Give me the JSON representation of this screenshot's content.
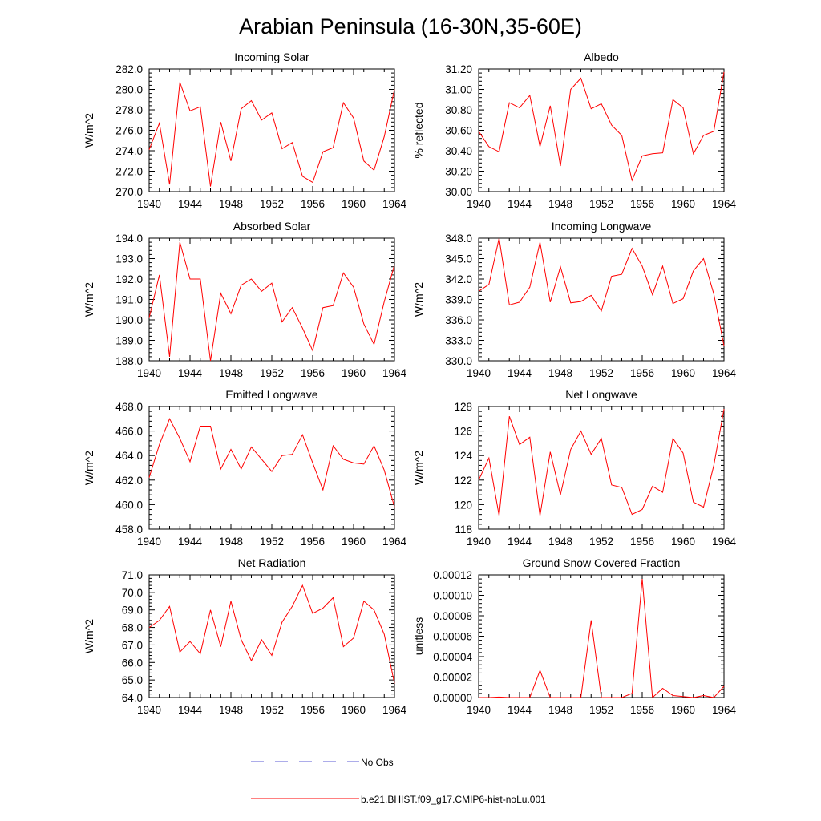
{
  "title": "Arabian Peninsula (16-30N,35-60E)",
  "colors": {
    "model": "#ff0000",
    "obs": "#5b5bd6",
    "axis": "#000000",
    "background": "#ffffff"
  },
  "legend": {
    "placement": "bottom-center",
    "items": [
      {
        "label": "No Obs",
        "style": "dashed",
        "color": "#5b5bd6"
      },
      {
        "label": "b.e21.BHIST.f09_g17.CMIP6-hist-noLu.001",
        "style": "solid",
        "color": "#ff0000"
      }
    ]
  },
  "chart_data": [
    {
      "type": "line",
      "title": "Incoming Solar",
      "ylabel": "W/m^2",
      "xlim": [
        1940,
        1964
      ],
      "ylim": [
        270,
        282
      ],
      "xticks": [
        "1940",
        "1944",
        "1948",
        "1952",
        "1956",
        "1960",
        "1964"
      ],
      "yticks": [
        "270.0",
        "272.0",
        "274.0",
        "276.0",
        "278.0",
        "280.0",
        "282.0"
      ],
      "grid": false,
      "x": [
        1940,
        1941,
        1942,
        1943,
        1944,
        1945,
        1946,
        1947,
        1948,
        1949,
        1950,
        1951,
        1952,
        1953,
        1954,
        1955,
        1956,
        1957,
        1958,
        1959,
        1960,
        1961,
        1962,
        1963,
        1964
      ],
      "series": [
        {
          "name": "b.e21.BHIST.f09_g17.CMIP6-hist-noLu.001",
          "values": [
            274.1,
            276.7,
            270.7,
            280.7,
            277.9,
            278.3,
            270.5,
            276.8,
            273.0,
            278.1,
            278.9,
            277.0,
            277.7,
            274.2,
            274.8,
            271.5,
            270.9,
            273.9,
            274.3,
            278.7,
            277.2,
            273.0,
            272.1,
            275.4,
            280.0
          ]
        }
      ]
    },
    {
      "type": "line",
      "title": "Albedo",
      "ylabel": "% reflected",
      "xlim": [
        1940,
        1964
      ],
      "ylim": [
        30.0,
        31.2
      ],
      "xticks": [
        "1940",
        "1944",
        "1948",
        "1952",
        "1956",
        "1960",
        "1964"
      ],
      "yticks": [
        "30.00",
        "30.20",
        "30.40",
        "30.60",
        "30.80",
        "31.00",
        "31.20"
      ],
      "grid": false,
      "x": [
        1940,
        1941,
        1942,
        1943,
        1944,
        1945,
        1946,
        1947,
        1948,
        1949,
        1950,
        1951,
        1952,
        1953,
        1954,
        1955,
        1956,
        1957,
        1958,
        1959,
        1960,
        1961,
        1962,
        1963,
        1964
      ],
      "series": [
        {
          "name": "b.e21.BHIST.f09_g17.CMIP6-hist-noLu.001",
          "values": [
            30.59,
            30.44,
            30.39,
            30.87,
            30.82,
            30.94,
            30.44,
            30.84,
            30.25,
            31.0,
            31.11,
            30.81,
            30.86,
            30.65,
            30.55,
            30.11,
            30.35,
            30.37,
            30.38,
            30.9,
            30.82,
            30.37,
            30.55,
            30.59,
            31.17
          ]
        }
      ]
    },
    {
      "type": "line",
      "title": "Absorbed Solar",
      "ylabel": "W/m^2",
      "xlim": [
        1940,
        1964
      ],
      "ylim": [
        188,
        194
      ],
      "xticks": [
        "1940",
        "1944",
        "1948",
        "1952",
        "1956",
        "1960",
        "1964"
      ],
      "yticks": [
        "188.0",
        "189.0",
        "190.0",
        "191.0",
        "192.0",
        "193.0",
        "194.0"
      ],
      "grid": false,
      "x": [
        1940,
        1941,
        1942,
        1943,
        1944,
        1945,
        1946,
        1947,
        1948,
        1949,
        1950,
        1951,
        1952,
        1953,
        1954,
        1955,
        1956,
        1957,
        1958,
        1959,
        1960,
        1961,
        1962,
        1963,
        1964
      ],
      "series": [
        {
          "name": "b.e21.BHIST.f09_g17.CMIP6-hist-noLu.001",
          "values": [
            190.1,
            192.2,
            188.2,
            193.8,
            192.0,
            192.0,
            188.0,
            191.3,
            190.3,
            191.7,
            192.0,
            191.4,
            191.8,
            189.9,
            190.6,
            189.6,
            188.5,
            190.6,
            190.7,
            192.3,
            191.6,
            189.8,
            188.8,
            190.9,
            192.7
          ]
        }
      ]
    },
    {
      "type": "line",
      "title": "Incoming Longwave",
      "ylabel": "W/m^2",
      "xlim": [
        1940,
        1964
      ],
      "ylim": [
        330,
        348
      ],
      "xticks": [
        "1940",
        "1944",
        "1948",
        "1952",
        "1956",
        "1960",
        "1964"
      ],
      "yticks": [
        "330.0",
        "333.0",
        "336.0",
        "339.0",
        "342.0",
        "345.0",
        "348.0"
      ],
      "grid": false,
      "x": [
        1940,
        1941,
        1942,
        1943,
        1944,
        1945,
        1946,
        1947,
        1948,
        1949,
        1950,
        1951,
        1952,
        1953,
        1954,
        1955,
        1956,
        1957,
        1958,
        1959,
        1960,
        1961,
        1962,
        1963,
        1964
      ],
      "series": [
        {
          "name": "b.e21.BHIST.f09_g17.CMIP6-hist-noLu.001",
          "values": [
            340.2,
            341.2,
            348.0,
            338.2,
            338.6,
            340.8,
            347.4,
            338.6,
            343.8,
            338.5,
            338.7,
            339.6,
            337.3,
            342.4,
            342.7,
            346.5,
            343.9,
            339.7,
            343.9,
            338.4,
            339.1,
            343.2,
            345.0,
            339.8,
            332.2
          ]
        }
      ]
    },
    {
      "type": "line",
      "title": "Emitted Longwave",
      "ylabel": "W/m^2",
      "xlim": [
        1940,
        1964
      ],
      "ylim": [
        458,
        468
      ],
      "xticks": [
        "1940",
        "1944",
        "1948",
        "1952",
        "1956",
        "1960",
        "1964"
      ],
      "yticks": [
        "458.0",
        "460.0",
        "462.0",
        "464.0",
        "466.0",
        "468.0"
      ],
      "grid": false,
      "x": [
        1940,
        1941,
        1942,
        1943,
        1944,
        1945,
        1946,
        1947,
        1948,
        1949,
        1950,
        1951,
        1952,
        1953,
        1954,
        1955,
        1956,
        1957,
        1958,
        1959,
        1960,
        1961,
        1962,
        1963,
        1964
      ],
      "series": [
        {
          "name": "b.e21.BHIST.f09_g17.CMIP6-hist-noLu.001",
          "values": [
            462.2,
            464.9,
            467.0,
            465.4,
            463.5,
            466.4,
            466.4,
            462.9,
            464.5,
            462.9,
            464.7,
            463.7,
            462.7,
            464.0,
            464.1,
            465.7,
            463.4,
            461.2,
            464.8,
            463.7,
            463.4,
            463.3,
            464.8,
            462.8,
            459.8
          ]
        }
      ]
    },
    {
      "type": "line",
      "title": "Net Longwave",
      "ylabel": "W/m^2",
      "xlim": [
        1940,
        1964
      ],
      "ylim": [
        118,
        128
      ],
      "xticks": [
        "1940",
        "1944",
        "1948",
        "1952",
        "1956",
        "1960",
        "1964"
      ],
      "yticks": [
        "118",
        "120",
        "122",
        "124",
        "126",
        "128"
      ],
      "grid": false,
      "x": [
        1940,
        1941,
        1942,
        1943,
        1944,
        1945,
        1946,
        1947,
        1948,
        1949,
        1950,
        1951,
        1952,
        1953,
        1954,
        1955,
        1956,
        1957,
        1958,
        1959,
        1960,
        1961,
        1962,
        1963,
        1964
      ],
      "series": [
        {
          "name": "b.e21.BHIST.f09_g17.CMIP6-hist-noLu.001",
          "values": [
            122.0,
            123.8,
            119.1,
            127.2,
            124.9,
            125.5,
            119.1,
            124.3,
            120.8,
            124.5,
            126.0,
            124.1,
            125.4,
            121.6,
            121.4,
            119.2,
            119.6,
            121.5,
            121.0,
            125.4,
            124.2,
            120.2,
            119.8,
            123.2,
            127.8
          ]
        }
      ]
    },
    {
      "type": "line",
      "title": "Net Radiation",
      "ylabel": "W/m^2",
      "xlim": [
        1940,
        1964
      ],
      "ylim": [
        64,
        71
      ],
      "xticks": [
        "1940",
        "1944",
        "1948",
        "1952",
        "1956",
        "1960",
        "1964"
      ],
      "yticks": [
        "64.0",
        "65.0",
        "66.0",
        "67.0",
        "68.0",
        "69.0",
        "70.0",
        "71.0"
      ],
      "grid": false,
      "x": [
        1940,
        1941,
        1942,
        1943,
        1944,
        1945,
        1946,
        1947,
        1948,
        1949,
        1950,
        1951,
        1952,
        1953,
        1954,
        1955,
        1956,
        1957,
        1958,
        1959,
        1960,
        1961,
        1962,
        1963,
        1964
      ],
      "series": [
        {
          "name": "b.e21.BHIST.f09_g17.CMIP6-hist-noLu.001",
          "values": [
            68.0,
            68.4,
            69.2,
            66.6,
            67.2,
            66.5,
            69.0,
            66.9,
            69.5,
            67.3,
            66.1,
            67.3,
            66.4,
            68.3,
            69.2,
            70.4,
            68.8,
            69.1,
            69.7,
            66.9,
            67.4,
            69.5,
            69.0,
            67.6,
            64.8
          ]
        }
      ]
    },
    {
      "type": "line",
      "title": "Ground Snow Covered Fraction",
      "ylabel": "unitless",
      "xlim": [
        1940,
        1964
      ],
      "ylim": [
        0,
        0.00012
      ],
      "xticks": [
        "1940",
        "1944",
        "1948",
        "1952",
        "1956",
        "1960",
        "1964"
      ],
      "yticks": [
        "0.00000",
        "0.00002",
        "0.00004",
        "0.00006",
        "0.00008",
        "0.00010",
        "0.00012"
      ],
      "grid": false,
      "x": [
        1940,
        1941,
        1942,
        1943,
        1944,
        1945,
        1946,
        1947,
        1948,
        1949,
        1950,
        1951,
        1952,
        1953,
        1954,
        1955,
        1956,
        1957,
        1958,
        1959,
        1960,
        1961,
        1962,
        1963,
        1964
      ],
      "series": [
        {
          "name": "b.e21.BHIST.f09_g17.CMIP6-hist-noLu.001",
          "values": [
            0,
            0,
            5e-07,
            0,
            0,
            0,
            2.65e-05,
            0,
            0,
            0,
            0,
            7.55e-05,
            0,
            0,
            0,
            4e-06,
            0.000116,
            0,
            9e-06,
            2e-06,
            1e-06,
            0,
            2e-06,
            0,
            1.1e-05
          ]
        }
      ]
    }
  ]
}
